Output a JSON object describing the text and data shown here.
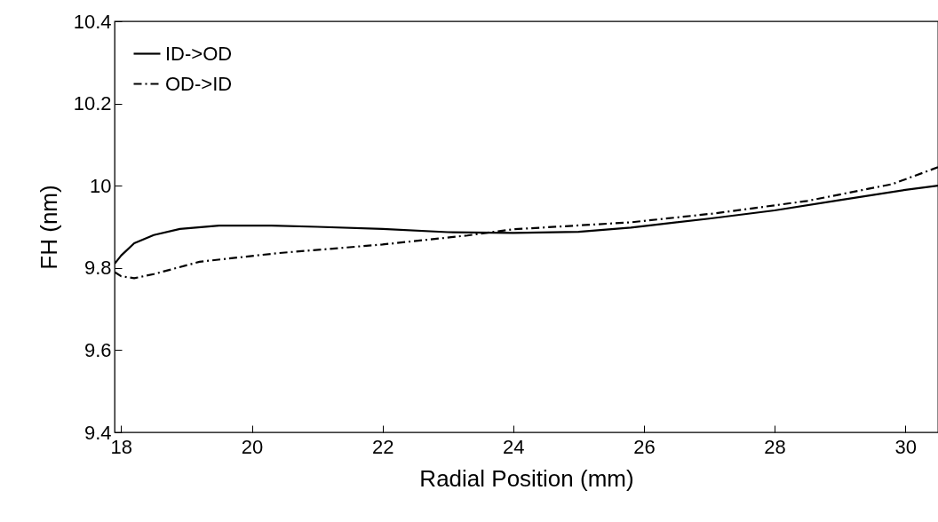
{
  "chart_data": {
    "type": "line",
    "xlabel": "Radial Position (mm)",
    "ylabel": "FH (nm)",
    "xlim": [
      17.9,
      30.5
    ],
    "xticks": [
      18,
      20,
      22,
      24,
      26,
      28,
      30
    ],
    "ylim": [
      9.4,
      10.4
    ],
    "yticks": [
      9.4,
      9.6,
      9.8,
      10,
      10.2,
      10.4
    ],
    "grid": false,
    "legend": "top left",
    "series": [
      {
        "name": "ID->OD",
        "color": "#000000",
        "line_style": "solid",
        "x": [
          17.9,
          18.0,
          18.2,
          18.5,
          18.9,
          19.5,
          20.3,
          21,
          22,
          23,
          24,
          25,
          25.8,
          27,
          28,
          29,
          30,
          30.5
        ],
        "values": [
          9.81,
          9.83,
          9.86,
          9.88,
          9.895,
          9.903,
          9.903,
          9.9,
          9.895,
          9.887,
          9.885,
          9.888,
          9.898,
          9.92,
          9.94,
          9.965,
          9.99,
          10.0
        ]
      },
      {
        "name": "OD->ID",
        "color": "#000000",
        "line_style": "dashdot",
        "x": [
          17.9,
          18.0,
          18.2,
          18.5,
          19.2,
          20.4,
          22,
          23.3,
          24,
          25.8,
          27.1,
          28.5,
          29.8,
          30.5
        ],
        "values": [
          9.79,
          9.78,
          9.775,
          9.785,
          9.815,
          9.836,
          9.857,
          9.879,
          9.894,
          9.911,
          9.933,
          9.963,
          10.004,
          10.045
        ]
      }
    ]
  }
}
